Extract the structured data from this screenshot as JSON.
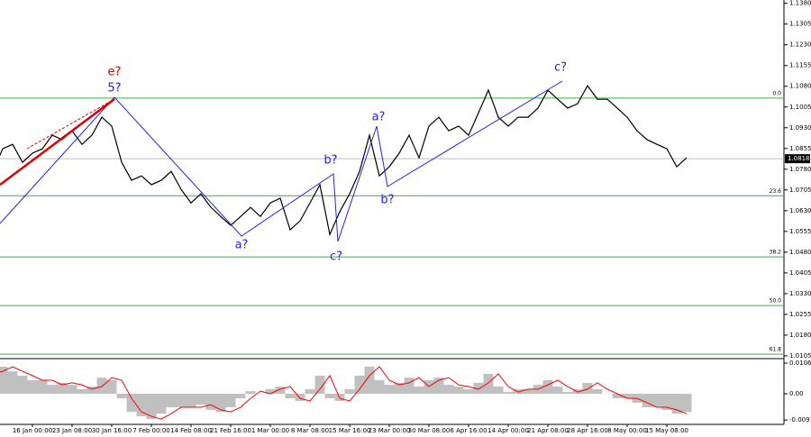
{
  "chart_data": [
    {
      "type": "line",
      "categories": [
        "00",
        null,
        null,
        null,
        "16 Jan 00:00",
        null,
        null,
        null,
        "23 Jan 08:00",
        null,
        null,
        null,
        "30 Jan 16:00",
        null,
        null,
        null,
        "7 Feb 00:00",
        null,
        null,
        null,
        "14 Feb 08:00",
        null,
        null,
        null,
        "21 Feb 16:00",
        null,
        null,
        null,
        "1 Mar 00:00",
        null,
        null,
        null,
        "8 Mar 08:00",
        null,
        null,
        null,
        "15 Mar 16:00",
        null,
        null,
        null,
        "23 Mar 00:00",
        null,
        null,
        null,
        "30 Mar 08:00",
        null,
        null,
        null,
        "6 Apr 16:00",
        null,
        null,
        null,
        "14 Apr 00:00",
        null,
        null,
        null,
        "21 Apr 08:00",
        null,
        null,
        null,
        "28 Apr 16:00",
        null,
        null,
        null,
        "8 May 00:00",
        null,
        null,
        null,
        "15 May 08:00",
        null,
        null
      ],
      "series": [
        {
          "color": "#000000",
          "values": [
            1.0772,
            1.0854,
            1.087,
            1.0805,
            1.0838,
            1.0854,
            1.0903,
            1.0887,
            1.0919,
            1.087,
            1.0903,
            1.0968,
            1.0936,
            1.0805,
            1.074,
            1.0756,
            1.0724,
            1.074,
            1.0772,
            1.0707,
            1.0658,
            1.0691,
            1.0642,
            1.0609,
            1.0577,
            1.0609,
            1.0642,
            1.0609,
            1.0658,
            1.0675,
            1.0561,
            1.0593,
            1.0658,
            1.0724,
            1.0544,
            1.0626,
            1.0691,
            1.0772,
            1.0903,
            1.0756,
            1.0789,
            1.0838,
            1.0903,
            1.0821,
            1.0936,
            1.0968,
            1.0919,
            1.0936,
            1.0903,
            1.0984,
            1.1066,
            1.0968,
            1.0936,
            1.0968,
            1.0968,
            1.1001,
            1.1066,
            1.1033,
            1.1001,
            1.1017,
            1.1082,
            1.1033,
            1.1033,
            1.1001,
            1.0968,
            1.0919,
            1.0887,
            1.087,
            1.0854,
            1.0789,
            1.0821
          ]
        }
      ],
      "ylim": [
        1.0095,
        1.1392
      ],
      "yticks": [
        {
          "value": 1.138,
          "label": "1.1380"
        },
        1.1305,
        {
          "value": 1.123,
          "label": "1.1230"
        },
        1.1155,
        {
          "value": 1.108,
          "label": "1.1080"
        },
        1.1005,
        {
          "value": 1.093,
          "label": "1.0930"
        },
        1.0855,
        {
          "value": 1.078,
          "label": "1.0780"
        },
        1.0705,
        {
          "value": 1.063,
          "label": "1.0630"
        },
        1.0555,
        {
          "value": 1.048,
          "label": "1.0480"
        },
        1.0405,
        {
          "value": 1.033,
          "label": "1.0330"
        },
        1.0255,
        {
          "value": 1.018,
          "label": "1.0180"
        },
        1.0105
      ],
      "current_price": 1.0818,
      "fib_levels": [
        {
          "name": "0.0",
          "price": 1.1037
        },
        {
          "name": "23.6",
          "price": 1.0684
        },
        {
          "name": "38.2",
          "price": 1.0463
        },
        {
          "name": "50.0",
          "price": 1.0287
        },
        {
          "name": "61.8",
          "price": 1.0111
        }
      ],
      "fib_color": "#3cb043",
      "annotations": [
        "e?",
        "5?",
        "a?",
        "b?",
        "c?",
        "a?",
        "b?",
        "c?"
      ]
    },
    {
      "type": "bar",
      "series": [
        {
          "color": "#c0c0c0",
          "values": [
            0.0078,
            0.0094,
            0.0078,
            0.0063,
            0.0047,
            0.0047,
            0.0031,
            0.0038,
            0.0031,
            0.0016,
            0.0025,
            0.0056,
            0.0047,
            -0.0016,
            -0.0063,
            -0.0078,
            -0.0088,
            -0.0069,
            -0.0047,
            -0.0047,
            -0.0047,
            -0.0038,
            -0.0056,
            -0.0063,
            -0.0047,
            -0.0016,
            0.0009,
            0,
            0.0016,
            0.0025,
            -0.0016,
            -0.0025,
            0.0016,
            0.0063,
            -0.0016,
            -0.0025,
            0.0016,
            0.0063,
            0.0094,
            0.0047,
            0.0031,
            0.0038,
            0.0056,
            0.0025,
            0.0047,
            0.0056,
            0.0031,
            0.0025,
            0.0016,
            0.0038,
            0.0069,
            0.0025,
            0.0006,
            0.0016,
            0.0016,
            0.0031,
            0.0047,
            0.0025,
            0.0006,
            0.0016,
            0.0038,
            0.0016,
            0,
            -0.0016,
            -0.0016,
            -0.0031,
            -0.0047,
            -0.0047,
            -0.0056,
            -0.0069,
            -0.0063
          ]
        },
        {
          "color": "#ff0000",
          "values": [
            0.007,
            0.0078,
            0.0094,
            0.0078,
            0.0063,
            0.0047,
            0.0047,
            0.0031,
            0.0038,
            0.0031,
            0.0016,
            0.0025,
            0.0056,
            0.0047,
            -0.0016,
            -0.0063,
            -0.0078,
            -0.0088,
            -0.0069,
            -0.0047,
            -0.0047,
            -0.0047,
            -0.0038,
            -0.0056,
            -0.0063,
            -0.0047,
            -0.0016,
            0.0009,
            0,
            0.0016,
            0.0025,
            -0.0016,
            -0.0025,
            0.0016,
            0.0063,
            -0.0016,
            -0.0025,
            0.0016,
            0.0063,
            0.0094,
            0.0047,
            0.0031,
            0.0038,
            0.0056,
            0.0025,
            0.0047,
            0.0056,
            0.0031,
            0.0025,
            0.0016,
            0.0038,
            0.0069,
            0.0025,
            0.0006,
            0.0016,
            0.0016,
            0.0031,
            0.0047,
            0.0025,
            0.0006,
            0.0016,
            0.0038,
            0.0016,
            0,
            -0.0016,
            -0.0016,
            -0.0031,
            -0.0047,
            -0.0047,
            -0.0056,
            -0.0069
          ]
        }
      ],
      "ylim": [
        -0.01033,
        0.01159
      ],
      "yticks": [
        0.01065,
        {
          "value": 0,
          "label": "0.00"
        },
        -0.00913
      ]
    }
  ]
}
